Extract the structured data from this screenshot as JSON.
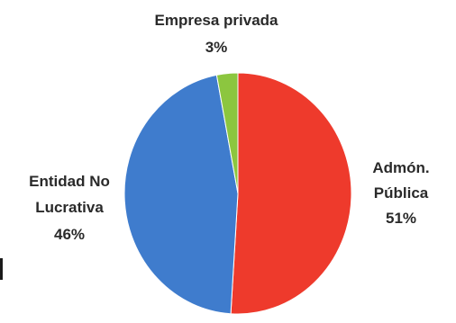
{
  "chart_data": {
    "type": "pie",
    "slices": [
      {
        "label": "Admón. Pública",
        "value": 51,
        "display": "51%",
        "color": "#ee3a2c"
      },
      {
        "label": "Entidad No Lucrativa",
        "value": 46,
        "display": "46%",
        "color": "#3f7ccd"
      },
      {
        "label": "Empresa privada",
        "value": 3,
        "display": "3%",
        "color": "#8cc63f"
      }
    ],
    "labels": {
      "admon_line1": "Admón.",
      "admon_line2": "Pública",
      "admon_pct": "51%",
      "entidad_line1": "Entidad No",
      "entidad_line2": "Lucrativa",
      "entidad_pct": "46%",
      "empresa_line1": "Empresa privada",
      "empresa_pct": "3%"
    },
    "start_angle_deg": 0,
    "direction": "clockwise",
    "legend": "none"
  }
}
